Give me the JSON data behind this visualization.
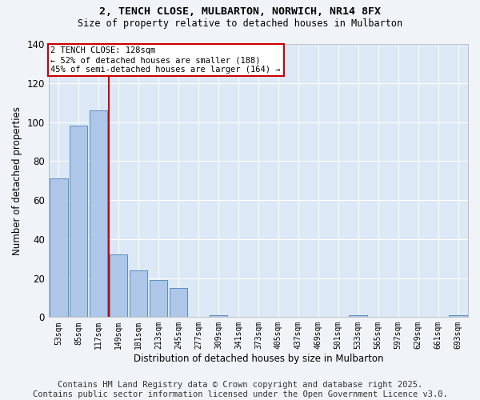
{
  "title": "2, TENCH CLOSE, MULBARTON, NORWICH, NR14 8FX",
  "subtitle": "Size of property relative to detached houses in Mulbarton",
  "xlabel": "Distribution of detached houses by size in Mulbarton",
  "ylabel": "Number of detached properties",
  "bar_color": "#aec6e8",
  "bar_edge_color": "#5a8fc0",
  "bg_color": "#dce8f5",
  "grid_color": "#ffffff",
  "fig_bg_color": "#f0f4f8",
  "categories": [
    "53sqm",
    "85sqm",
    "117sqm",
    "149sqm",
    "181sqm",
    "213sqm",
    "245sqm",
    "277sqm",
    "309sqm",
    "341sqm",
    "373sqm",
    "405sqm",
    "437sqm",
    "469sqm",
    "501sqm",
    "533sqm",
    "565sqm",
    "597sqm",
    "629sqm",
    "661sqm",
    "693sqm"
  ],
  "values": [
    71,
    98,
    106,
    32,
    24,
    19,
    15,
    0,
    1,
    0,
    0,
    0,
    0,
    0,
    0,
    1,
    0,
    0,
    0,
    0,
    1
  ],
  "ylim": [
    0,
    140
  ],
  "yticks": [
    0,
    20,
    40,
    60,
    80,
    100,
    120,
    140
  ],
  "property_line_label": "2 TENCH CLOSE: 128sqm",
  "annotation_line1": "← 52% of detached houses are smaller (188)",
  "annotation_line2": "45% of semi-detached houses are larger (164) →",
  "annotation_box_color": "#cc0000",
  "footer": "Contains HM Land Registry data © Crown copyright and database right 2025.\nContains public sector information licensed under the Open Government Licence v3.0.",
  "footer_fontsize": 7.5
}
